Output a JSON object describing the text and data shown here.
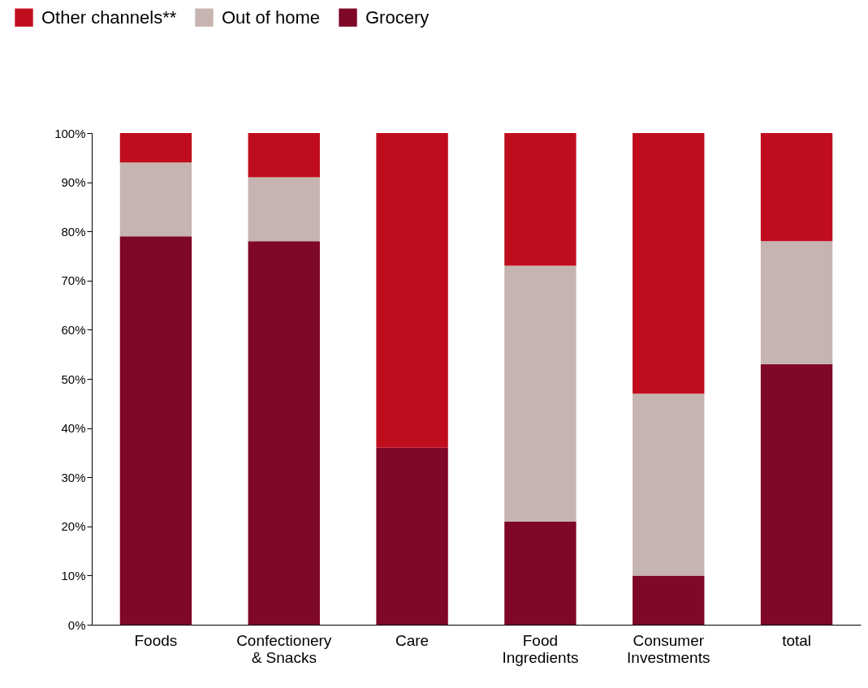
{
  "chart_data": {
    "type": "bar",
    "stacked": true,
    "categories": [
      "Foods",
      "Confectionery & Snacks",
      "Care",
      "Food Ingredients",
      "Consumer Investments",
      "total"
    ],
    "series": [
      {
        "name": "Grocery",
        "color": "#7f0728",
        "values": [
          79,
          78,
          36,
          21,
          10,
          53
        ]
      },
      {
        "name": "Out of home",
        "color": "#c5b4b0",
        "values": [
          15,
          13,
          0,
          52,
          37,
          25
        ]
      },
      {
        "name": "Other channels**",
        "color": "#c00d1e",
        "values": [
          6,
          9,
          64,
          27,
          53,
          22
        ]
      }
    ],
    "ylim": [
      0,
      100
    ],
    "yticks": [
      {
        "value": 0,
        "label": "0%"
      },
      {
        "value": 10,
        "label": "10%"
      },
      {
        "value": 20,
        "label": "20%"
      },
      {
        "value": 30,
        "label": "30%"
      },
      {
        "value": 40,
        "label": "40%"
      },
      {
        "value": 50,
        "label": "50%"
      },
      {
        "value": 60,
        "label": "60%"
      },
      {
        "value": 70,
        "label": "70%"
      },
      {
        "value": 80,
        "label": "80%"
      },
      {
        "value": 90,
        "label": "90%"
      },
      {
        "value": 100,
        "label": "100%"
      }
    ],
    "grid": false,
    "legend": "top left"
  }
}
